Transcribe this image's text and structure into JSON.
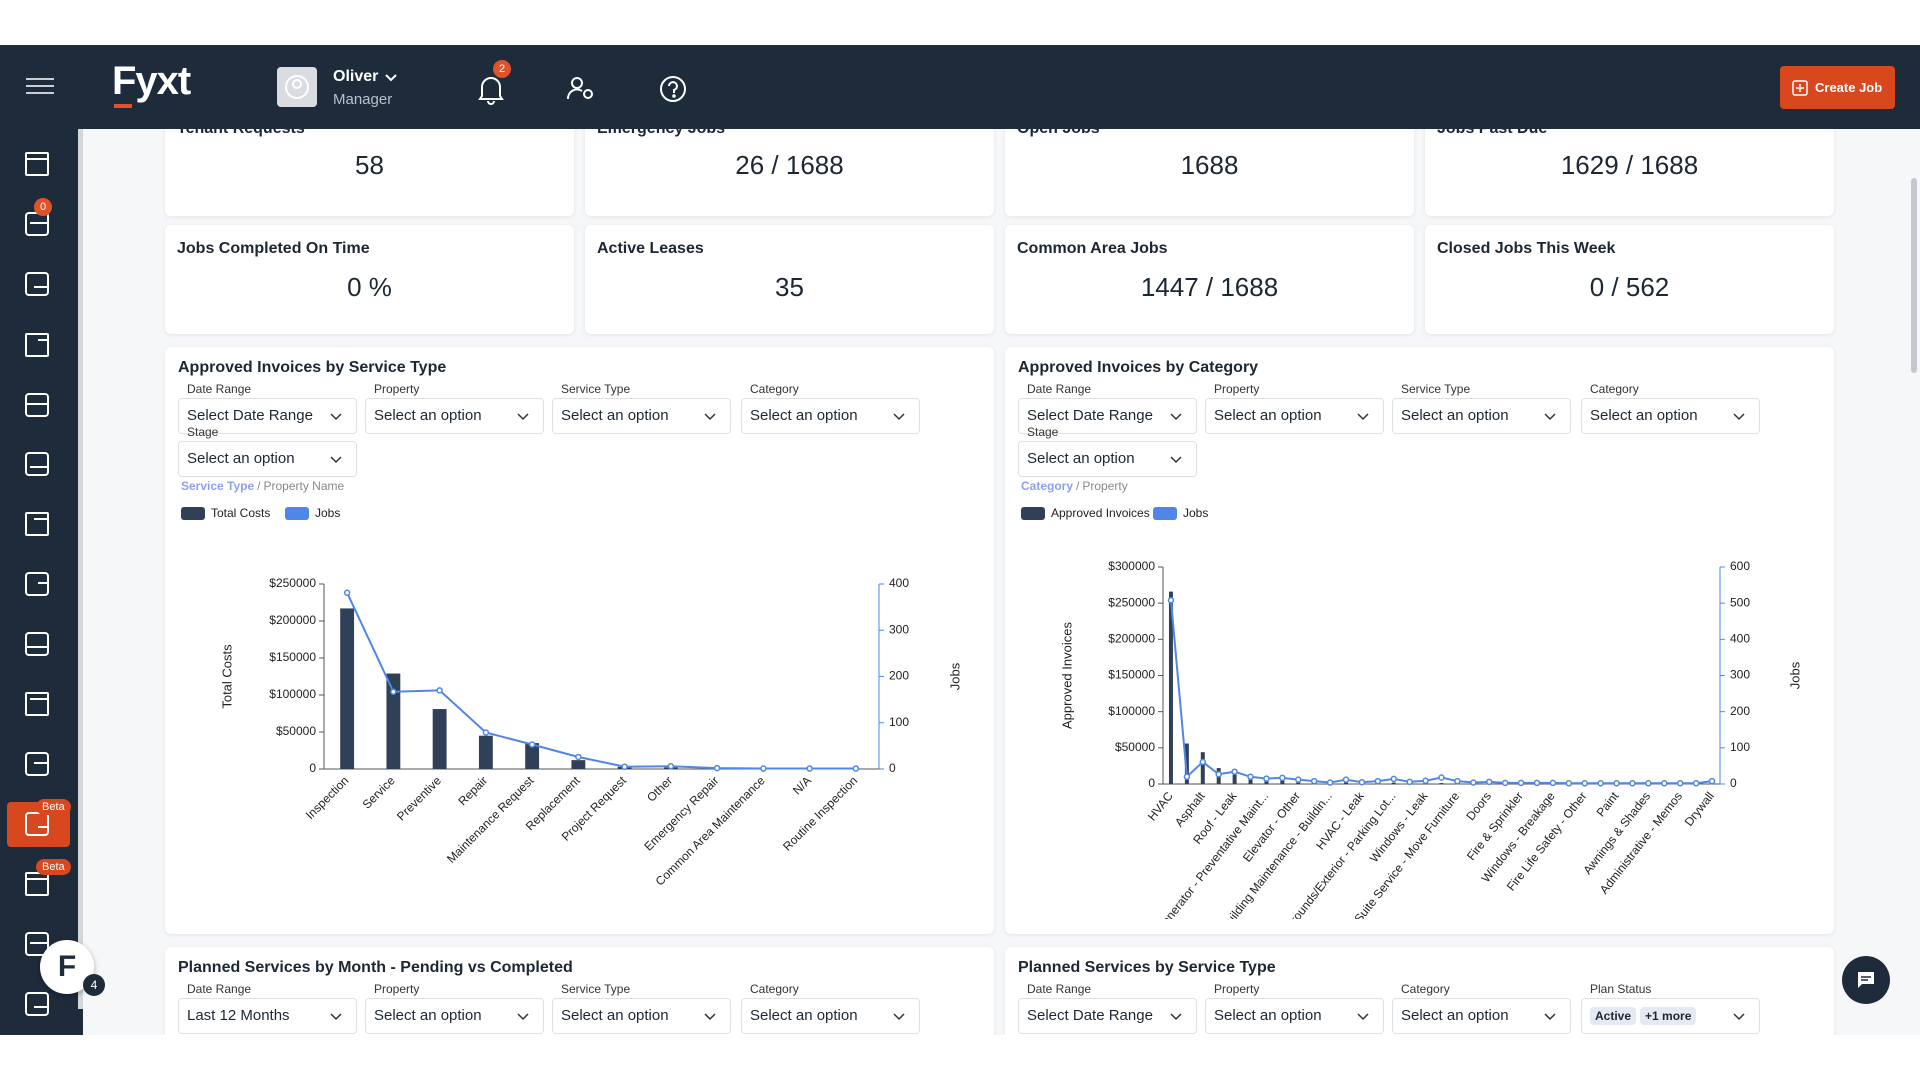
{
  "nav": {
    "logo": "Fyxt",
    "user": "Oliver",
    "role": "Manager",
    "notifications": "2",
    "create": "Create Job"
  },
  "sidebar": {
    "inbox_badge": "0",
    "beta": [
      "Beta",
      "Beta"
    ],
    "assistant": "F",
    "assistant_badge": "4"
  },
  "stats": [
    {
      "label": "Tenant Requests",
      "value": "58"
    },
    {
      "label": "Emergency Jobs",
      "value": "26 / 1688"
    },
    {
      "label": "Open Jobs",
      "value": "1688"
    },
    {
      "label": "Jobs Past Due",
      "value": "1629 / 1688"
    },
    {
      "label": "Jobs Completed On Time",
      "value": "0 %"
    },
    {
      "label": "Active Leases",
      "value": "35"
    },
    {
      "label": "Common Area Jobs",
      "value": "1447 / 1688"
    },
    {
      "label": "Closed Jobs This Week",
      "value": "0 / 562"
    }
  ],
  "panels": [
    {
      "filters": [
        {
          "label": "Date Range",
          "value": "Select Date Range"
        },
        {
          "label": "Property",
          "value": "Select an option"
        },
        {
          "label": "Service Type",
          "value": "Select an option"
        },
        {
          "label": "Category",
          "value": "Select an option"
        },
        {
          "label": "Stage",
          "value": "Select an option"
        }
      ],
      "breadcrumb": [
        "Service Type",
        "Property Name"
      ],
      "separator": "/"
    },
    {
      "filters": [
        {
          "label": "Date Range",
          "value": "Select Date Range"
        },
        {
          "label": "Property",
          "value": "Select an option"
        },
        {
          "label": "Service Type",
          "value": "Select an option"
        },
        {
          "label": "Category",
          "value": "Select an option"
        },
        {
          "label": "Stage",
          "value": "Select an option"
        }
      ],
      "breadcrumb": [
        "Category",
        "Property"
      ],
      "separator": "/"
    }
  ],
  "bottom_panels": [
    {
      "title": "Planned Services by Month - Pending vs Completed",
      "filters": [
        {
          "label": "Date Range",
          "value": "Last 12 Months"
        },
        {
          "label": "Property",
          "value": "Select an option"
        },
        {
          "label": "Service Type",
          "value": "Select an option"
        },
        {
          "label": "Category",
          "value": "Select an option"
        }
      ]
    },
    {
      "title": "Planned Services by Service Type",
      "filters": [
        {
          "label": "Date Range",
          "value": "Select Date Range"
        },
        {
          "label": "Property",
          "value": "Select an option"
        },
        {
          "label": "Category",
          "value": "Select an option"
        },
        {
          "label": "Plan Status",
          "chips": [
            "Active",
            "+1 more"
          ]
        }
      ]
    }
  ],
  "chart_data": [
    {
      "type": "bar",
      "title": "Approved Invoices by Service Type",
      "ylabel": "Total Costs",
      "y2label": "Jobs",
      "categories": [
        "Inspection",
        "Service",
        "Preventive",
        "Repair",
        "Maintenance Request",
        "Replacement",
        "Project Request",
        "Other",
        "Emergency Repair",
        "Common Area Maintenance",
        "N/A",
        "Routine Inspection"
      ],
      "series": [
        {
          "name": "Total Costs",
          "color": "#2f4057",
          "values": [
            217000,
            129000,
            81000,
            45000,
            35000,
            12000,
            3000,
            2000,
            500,
            200,
            100,
            100
          ]
        },
        {
          "name": "Jobs",
          "color": "#4f86e8",
          "type": "line",
          "axis": "y2",
          "values": [
            381,
            167,
            170,
            79,
            53,
            26,
            5,
            6,
            2,
            1,
            1,
            1
          ]
        }
      ],
      "ylim": [
        0,
        250000
      ],
      "yticks": [
        0,
        {
          "value": 50000,
          "label": "$50000"
        },
        {
          "value": 100000,
          "label": "$100000"
        },
        {
          "value": 150000,
          "label": "$150000"
        },
        {
          "value": 200000,
          "label": "$200000"
        },
        {
          "value": 250000,
          "label": "$250000"
        }
      ],
      "y2lim": [
        0,
        400
      ],
      "y2ticks": [
        0,
        100,
        200,
        300,
        400
      ]
    },
    {
      "type": "bar",
      "title": "Approved Invoices by Category",
      "ylabel": "Approved Invoices",
      "y2label": "Jobs",
      "categories": [
        "HVAC",
        null,
        "Asphalt",
        null,
        "Roof - Leak",
        null,
        "Generator - Preventative Maint...",
        null,
        "Elevator - Other",
        null,
        "Building Maintenance - Buildin...",
        null,
        "HVAC - Leak",
        null,
        "Grounds/Exterior - Parking Lot...",
        null,
        "Windows - Leak",
        null,
        "Suite Service - Move Furniture",
        null,
        "Doors",
        null,
        "Fire & Sprinkler",
        null,
        "Windows - Breakage",
        null,
        "Fire Life Safety - Other",
        null,
        "Paint",
        null,
        "Awnings & Shades",
        null,
        "Administrative - Memos",
        null,
        "Drywall"
      ],
      "series": [
        {
          "name": "Approved Invoices",
          "color": "#2f4057",
          "values": [
            266000,
            56000,
            44000,
            22000,
            20000,
            12000,
            9000,
            7000,
            6000,
            5000,
            4000,
            3500,
            3000,
            2500,
            2000,
            1800,
            1500,
            1300,
            1200,
            1000,
            900,
            800,
            700,
            600,
            500,
            450,
            400,
            350,
            300,
            250,
            200,
            150,
            100,
            80,
            50
          ]
        },
        {
          "name": "Jobs",
          "color": "#4f86e8",
          "type": "line",
          "axis": "y2",
          "values": [
            508,
            20,
            61,
            27,
            34,
            20,
            15,
            17,
            12,
            8,
            4,
            12,
            5,
            8,
            14,
            6,
            9,
            18,
            8,
            4,
            6,
            3,
            3,
            3,
            3,
            2,
            2,
            2,
            2,
            2,
            2,
            2,
            2,
            2,
            8
          ]
        }
      ],
      "ylim": [
        0,
        300000
      ],
      "yticks": [
        0,
        {
          "value": 50000,
          "label": "$50000"
        },
        {
          "value": 100000,
          "label": "$100000"
        },
        {
          "value": 150000,
          "label": "$150000"
        },
        {
          "value": 200000,
          "label": "$200000"
        },
        {
          "value": 250000,
          "label": "$250000"
        },
        {
          "value": 300000,
          "label": "$300000"
        }
      ],
      "y2lim": [
        0,
        600
      ],
      "y2ticks": [
        0,
        100,
        200,
        300,
        400,
        500,
        600
      ]
    }
  ]
}
